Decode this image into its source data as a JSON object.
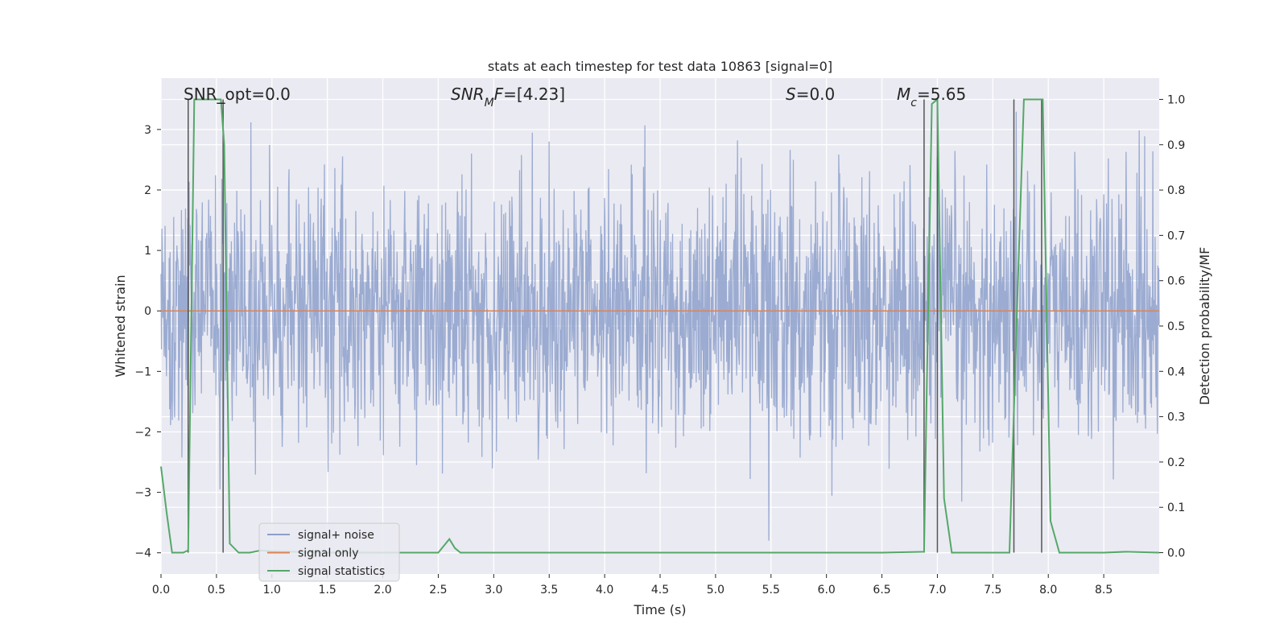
{
  "chart_data": {
    "type": "line",
    "title": "stats at each timestep for test data 10863 [signal=0]",
    "xlabel": "Time (s)",
    "ylabel": "Whitened strain",
    "y2label": "Detection probability/MF",
    "xlim": [
      0.0,
      9.0
    ],
    "ylim": [
      -4.35,
      3.85
    ],
    "y2lim": [
      -0.047,
      1.047
    ],
    "xticks": [
      "0.0",
      "0.5",
      "1.0",
      "1.5",
      "2.0",
      "2.5",
      "3.0",
      "3.5",
      "4.0",
      "4.5",
      "5.0",
      "5.5",
      "6.0",
      "6.5",
      "7.0",
      "7.5",
      "8.0",
      "8.5"
    ],
    "xtick_values": [
      0.0,
      0.5,
      1.0,
      1.5,
      2.0,
      2.5,
      3.0,
      3.5,
      4.0,
      4.5,
      5.0,
      5.5,
      6.0,
      6.5,
      7.0,
      7.5,
      8.0,
      8.5
    ],
    "yticks": [
      "−4",
      "−3",
      "−2",
      "−1",
      "0",
      "1",
      "2",
      "3"
    ],
    "ytick_values": [
      -4,
      -3,
      -2,
      -1,
      0,
      1,
      2,
      3
    ],
    "y2ticks": [
      "0.0",
      "0.1",
      "0.2",
      "0.3",
      "0.4",
      "0.5",
      "0.6",
      "0.7",
      "0.8",
      "0.9",
      "1.0"
    ],
    "y2tick_values": [
      0.0,
      0.1,
      0.2,
      0.3,
      0.4,
      0.5,
      0.6,
      0.7,
      0.8,
      0.9,
      1.0
    ],
    "grid": true,
    "legend_position": "lower-left",
    "colors": {
      "noise": "#8da0cb",
      "signal": "#dd8452",
      "stats": "#55a868",
      "vline": "#555555",
      "background": "#eaeaf2"
    },
    "annotations": [
      {
        "parts": [
          {
            "t": "SNR_opt=0.0",
            "i": false
          }
        ]
      },
      {
        "parts": [
          {
            "t": "SNR",
            "i": true
          },
          {
            "t": "M",
            "i": true,
            "sub": true
          },
          {
            "t": "F",
            "i": true
          },
          {
            "t": "=[4.23]",
            "i": false
          }
        ]
      },
      {
        "parts": [
          {
            "t": "S",
            "i": true
          },
          {
            "t": "=0.0",
            "i": false
          }
        ]
      },
      {
        "parts": [
          {
            "t": "M",
            "i": true
          },
          {
            "t": "c",
            "i": true,
            "sub": true
          },
          {
            "t": "=5.65",
            "i": false
          }
        ]
      }
    ],
    "series": [
      {
        "name": "signal+ noise",
        "kind": "noise",
        "n_samples": 2200,
        "stdev": 1.0,
        "x_start": 0.0,
        "x_end": 9.0
      },
      {
        "name": "signal only",
        "kind": "flat",
        "y": 0.0
      },
      {
        "name": "signal statistics",
        "axis": "y2",
        "x": [
          0.0,
          0.05,
          0.1,
          0.15,
          0.2,
          0.245,
          0.3,
          0.36,
          0.42,
          0.48,
          0.54,
          0.57,
          0.62,
          0.7,
          0.8,
          0.9,
          1.0,
          1.5,
          2.0,
          2.5,
          2.6,
          2.65,
          2.7,
          3.5,
          4.5,
          5.5,
          6.5,
          6.88,
          6.9,
          6.95,
          7.0,
          7.06,
          7.13,
          7.5,
          7.65,
          7.72,
          7.78,
          7.9,
          7.95,
          8.02,
          8.1,
          8.5,
          8.7,
          9.0
        ],
        "y": [
          0.19,
          0.09,
          0.0,
          0.0,
          0.0,
          0.005,
          1.0,
          1.0,
          1.0,
          1.0,
          1.0,
          0.9,
          0.02,
          0.0,
          0.0,
          0.005,
          0.003,
          0.0,
          0.0,
          0.0,
          0.03,
          0.01,
          0.0,
          0.0,
          0.0,
          0.0,
          0.0,
          0.002,
          0.3,
          0.99,
          1.0,
          0.12,
          0.0,
          0.0,
          0.0,
          0.55,
          1.0,
          1.0,
          1.0,
          0.07,
          0.0,
          0.0,
          0.002,
          0.0
        ]
      }
    ],
    "vlines": [
      0.245,
      0.56,
      6.88,
      7.0,
      7.69,
      7.94
    ]
  }
}
